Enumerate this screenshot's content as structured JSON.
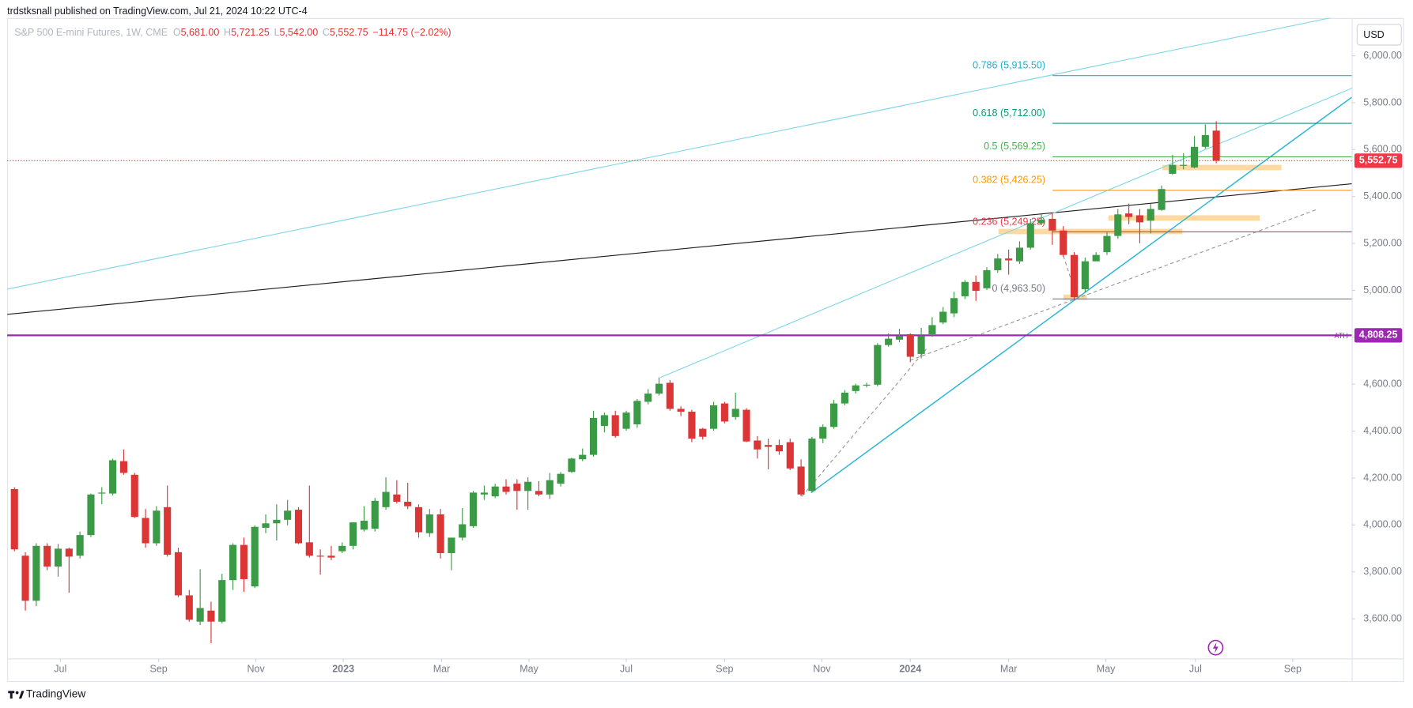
{
  "page": {
    "published": "trdstksnall published on TradingView.com, Jul 21, 2024 10:22 UTC-4",
    "brand": "TradingView",
    "currency": "USD"
  },
  "chart_data": {
    "type": "candlestick",
    "title": "S&P 500 E-mini Futures, 1W, CME",
    "ohlc_header": [
      {
        "key": "O",
        "text": "5,681.00"
      },
      {
        "key": "H",
        "text": "5,721.25"
      },
      {
        "key": "L",
        "text": "5,542.00"
      },
      {
        "key": "C",
        "text": "5,552.75"
      }
    ],
    "change": "−114.75 (−2.02%)",
    "open": [
      4153,
      3869,
      3677,
      3911,
      3823,
      3899,
      3869,
      3957,
      4134,
      4134,
      4272,
      4214,
      4030,
      3922,
      4076,
      3884,
      3700,
      3588,
      3635,
      3588,
      3765,
      3915,
      3738,
      3988,
      4007,
      4022,
      4065,
      3926,
      3869,
      3869,
      3888,
      3911,
      3980,
      3984,
      4076,
      4130,
      4099,
      4076,
      3965,
      4045,
      3880,
      3946,
      3995,
      4130,
      4122,
      4164,
      4176,
      4145,
      4145,
      4130,
      4176,
      4226,
      4280,
      4299,
      4422,
      4468,
      4410,
      4429,
      4525,
      4560,
      4606,
      4495,
      4483,
      4410,
      4410,
      4518,
      4460,
      4491,
      4360,
      4341,
      4341,
      4353,
      4249,
      4145,
      4368,
      4418,
      4518,
      4571,
      4595,
      4598,
      4767,
      4790,
      4813,
      4729,
      4813,
      4863,
      4902,
      4975,
      5036,
      5009,
      5086,
      5136,
      5124,
      5182,
      5286,
      5305,
      5255,
      5151,
      5005,
      5124,
      5163,
      5232,
      5328,
      5320,
      5297,
      5343,
      5497,
      5531,
      5524,
      5612,
      5681
    ],
    "high": [
      4161,
      3884,
      3922,
      3922,
      3919,
      3903,
      3972,
      4134,
      4161,
      4283,
      4322,
      4222,
      4068,
      4080,
      4168,
      3903,
      3723,
      3811,
      3673,
      3792,
      3922,
      3946,
      3999,
      4045,
      4088,
      4107,
      4076,
      4168,
      3896,
      3911,
      3926,
      4011,
      4080,
      4115,
      4203,
      4191,
      4180,
      4088,
      4068,
      4068,
      3946,
      4072,
      4145,
      4168,
      4176,
      4195,
      4195,
      4203,
      4187,
      4222,
      4226,
      4287,
      4326,
      4487,
      4479,
      4487,
      4487,
      4537,
      4579,
      4629,
      4618,
      4506,
      4491,
      4414,
      4525,
      4525,
      4564,
      4498,
      4379,
      4368,
      4364,
      4368,
      4280,
      4376,
      4429,
      4533,
      4575,
      4602,
      4606,
      4775,
      4817,
      4836,
      4817,
      4840,
      4886,
      4929,
      4994,
      5044,
      5063,
      5098,
      5155,
      5174,
      5209,
      5305,
      5324,
      5332,
      5274,
      5163,
      5140,
      5163,
      5247,
      5347,
      5370,
      5347,
      5370,
      5447,
      5578,
      5585,
      5658,
      5708,
      5721.25
    ],
    "low": [
      3888,
      3635,
      3654,
      3807,
      3780,
      3711,
      3857,
      3949,
      4088,
      4126,
      4214,
      4030,
      3903,
      3911,
      3865,
      3692,
      3588,
      3573,
      3496,
      3581,
      3723,
      3715,
      3731,
      3965,
      3934,
      3999,
      3919,
      3861,
      3788,
      3850,
      3880,
      3896,
      3972,
      3972,
      4065,
      4091,
      4068,
      3946,
      3949,
      3857,
      3807,
      3934,
      3988,
      4107,
      4115,
      4130,
      4065,
      4065,
      4122,
      4111,
      4164,
      4222,
      4272,
      4291,
      4395,
      4372,
      4402,
      4414,
      4514,
      4552,
      4487,
      4464,
      4353,
      4364,
      4402,
      4433,
      4449,
      4353,
      4283,
      4237,
      4299,
      4234,
      4122,
      4138,
      4349,
      4410,
      4510,
      4560,
      4587,
      4591,
      4760,
      4779,
      4694,
      4710,
      4802,
      4856,
      4886,
      4963,
      4955,
      5002,
      5075,
      5067,
      5113,
      5174,
      5278,
      5194,
      5144,
      4959,
      4990,
      5124,
      5151,
      5220,
      5282,
      5201,
      5243,
      5339,
      5493,
      5516,
      5520,
      5604,
      5542
    ],
    "close": [
      3896,
      3677,
      3911,
      3823,
      3899,
      3865,
      3957,
      4130,
      4138,
      4276,
      4222,
      4034,
      3922,
      4061,
      3873,
      3700,
      3596,
      3646,
      3588,
      3765,
      3915,
      3769,
      3992,
      4007,
      4022,
      4061,
      3922,
      3869,
      3865,
      3861,
      3911,
      4011,
      4018,
      4103,
      4141,
      4099,
      4080,
      3969,
      4045,
      3880,
      3946,
      4003,
      4138,
      4138,
      4164,
      4141,
      4145,
      4184,
      4130,
      4191,
      4218,
      4283,
      4299,
      4456,
      4468,
      4379,
      4479,
      4529,
      4560,
      4602,
      4495,
      4483,
      4368,
      4376,
      4510,
      4441,
      4495,
      4356,
      4322,
      4333,
      4314,
      4241,
      4130,
      4368,
      4418,
      4518,
      4564,
      4595,
      4598,
      4767,
      4794,
      4806,
      4717,
      4806,
      4852,
      4909,
      4967,
      5036,
      4998,
      5086,
      5136,
      5128,
      5182,
      5286,
      5301,
      5255,
      5151,
      4971,
      5124,
      5151,
      5232,
      5324,
      5313,
      5290,
      5347,
      5432,
      5535,
      5535,
      5612,
      5662,
      5552.75
    ],
    "up_color": "#3b9a45",
    "down_color": "#dc3535",
    "xlim": [
      -0.66,
      122.4
    ],
    "xticks": [
      {
        "value": 4.2,
        "label": "Jul"
      },
      {
        "value": 13.2,
        "label": "Sep"
      },
      {
        "value": 22.1,
        "label": "Nov"
      },
      {
        "value": 30.1,
        "label": "2023"
      },
      {
        "value": 39.1,
        "label": "Mar"
      },
      {
        "value": 47.1,
        "label": "May"
      },
      {
        "value": 56.0,
        "label": "Jul"
      },
      {
        "value": 65.0,
        "label": "Sep"
      },
      {
        "value": 73.9,
        "label": "Nov"
      },
      {
        "value": 82.0,
        "label": "2024"
      },
      {
        "value": 91.0,
        "label": "Mar"
      },
      {
        "value": 99.9,
        "label": "May"
      },
      {
        "value": 108.1,
        "label": "Jul"
      },
      {
        "value": 117.0,
        "label": "Sep"
      }
    ],
    "ylim": [
      3431,
      6161
    ],
    "yticks": [
      {
        "value": 3600,
        "label": "3,600.00"
      },
      {
        "value": 3800,
        "label": "3,800.00"
      },
      {
        "value": 4000,
        "label": "4,000.00"
      },
      {
        "value": 4200,
        "label": "4,200.00"
      },
      {
        "value": 4400,
        "label": "4,400.00"
      },
      {
        "value": 4600,
        "label": "4,600.00"
      },
      {
        "value": 4800,
        "label": "4,800.00"
      },
      {
        "value": 5000,
        "label": "5,000.00"
      },
      {
        "value": 5200,
        "label": "5,200.00"
      },
      {
        "value": 5400,
        "label": "5,400.00"
      },
      {
        "value": 5600,
        "label": "5,600.00"
      },
      {
        "value": 5800,
        "label": "5,800.00"
      },
      {
        "value": 6000,
        "label": "6,000.00"
      }
    ],
    "last_price": {
      "value": 5552.75,
      "label": "5,552.75",
      "color": "#f23645"
    },
    "ath": {
      "name": "ATH",
      "value": 4808.25,
      "label": "4,808.25",
      "color": "#9c27b0"
    },
    "fib_levels": [
      {
        "label": "0.786 (5,915.50)",
        "value": 5915.5,
        "color": "#1fb0cc"
      },
      {
        "label": "0.618 (5,712.00)",
        "value": 5712,
        "color": "#089981"
      },
      {
        "label": "0.5 (5,569.25)",
        "value": 5569.25,
        "color": "#4caf50"
      },
      {
        "label": "0.382 (5,426.25)",
        "value": 5426.25,
        "color": "#ff9800"
      },
      {
        "label": "0.236 (5,249.25)",
        "value": 5249.25,
        "color": "#f23645"
      },
      {
        "label": "0 (4,963.50)",
        "value": 4963.5,
        "color": "#787b86"
      }
    ]
  }
}
